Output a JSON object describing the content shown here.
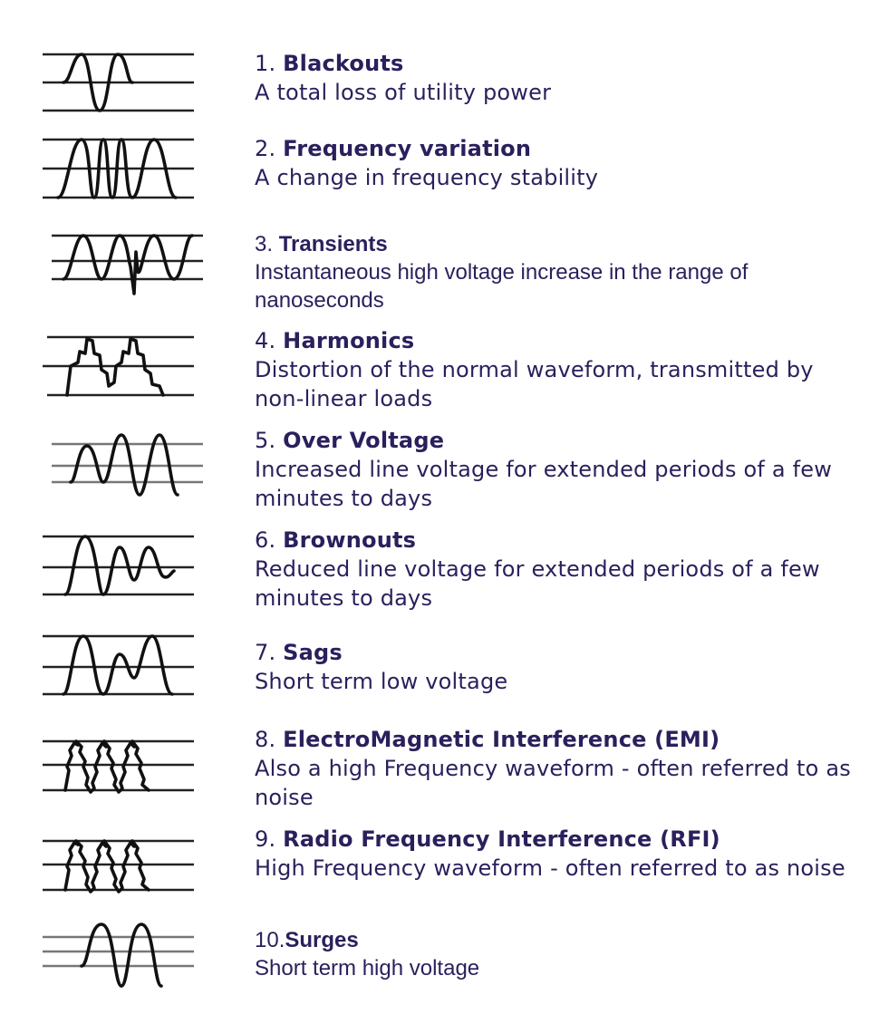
{
  "items": [
    {
      "number": "1.",
      "name": "Blackouts",
      "description": "A total loss of utility power",
      "waveform_icon": "blackout-waveform-icon"
    },
    {
      "number": "2.",
      "name": "Frequency variation",
      "description": "A change in frequency stability",
      "waveform_icon": "frequency-variation-waveform-icon"
    },
    {
      "number": "3.",
      "name": "Transients",
      "description": "Instantaneous high voltage increase in the range of nanoseconds",
      "waveform_icon": "transient-waveform-icon"
    },
    {
      "number": "4.",
      "name": "Harmonics",
      "description": "Distortion of the normal waveform, transmitted by non-linear loads",
      "waveform_icon": "harmonics-waveform-icon"
    },
    {
      "number": "5.",
      "name": "Over Voltage",
      "description": "Increased line voltage for extended periods of a few minutes to  days",
      "waveform_icon": "over-voltage-waveform-icon"
    },
    {
      "number": "6.",
      "name": "Brownouts",
      "description": "Reduced line voltage for extended periods of a few minutes to days",
      "waveform_icon": "brownout-waveform-icon"
    },
    {
      "number": "7.",
      "name": " Sags",
      "description": "Short term low voltage",
      "waveform_icon": "sag-waveform-icon"
    },
    {
      "number": "8.",
      "name": "ElectroMagnetic Interference (EMI)",
      "description": "Also a high Frequency waveform  - often referred to as noise",
      "waveform_icon": "emi-waveform-icon"
    },
    {
      "number": "9.",
      "name": "Radio Frequency Interference (RFI)",
      "description": "High Frequency waveform  - often referred to as noise",
      "waveform_icon": "rfi-waveform-icon"
    },
    {
      "number": "10.",
      "name": "Surges",
      "description": "Short term high voltage",
      "waveform_icon": "surge-waveform-icon"
    }
  ],
  "colors": {
    "text": "#2b1f5c",
    "wave": "#111111"
  }
}
